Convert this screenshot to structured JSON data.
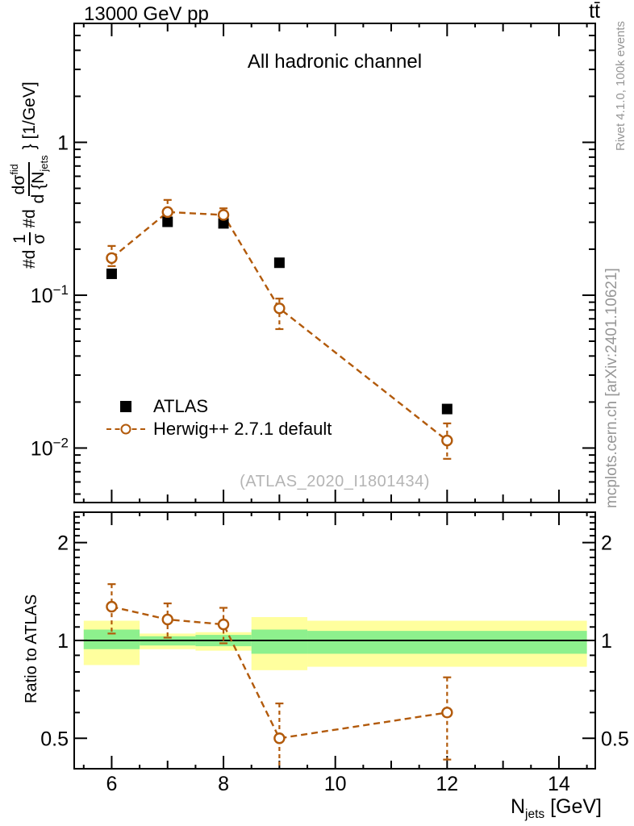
{
  "header": {
    "left_title": "13000 GeV pp",
    "right_title": "tt̄"
  },
  "side_texts": {
    "rivet": "Rivet 4.1.0,  100k events",
    "mcplots": "mcplots.cern.ch [arXiv:2401.10621]"
  },
  "main_panel": {
    "title": "All hadronic channel",
    "watermark": "(ATLAS_2020_I1801434)",
    "ylabel": {
      "hash1": "#d",
      "frac1_num": "1",
      "frac1_den": "σ",
      "hash2": "#d",
      "frac2_num": "dσ",
      "frac2_sup": "fid",
      "frac2_den": "d {N",
      "frac2_den_sub": "jets",
      "tail": "} [1/GeV]"
    }
  },
  "ratio_panel": {
    "ylabel": "Ratio to ATLAS"
  },
  "xaxis": {
    "symbol": "N",
    "subscript": "jets",
    "unit": " [GeV]"
  },
  "legend": {
    "items": [
      {
        "label": "ATLAS",
        "marker": "filled-square"
      },
      {
        "label": "Herwig++ 2.7.1 default",
        "marker": "open-circle-dashed"
      }
    ]
  },
  "colors": {
    "herwig": "#b25a0b",
    "band_yellow": "#ffff9e",
    "band_green": "#8df08d",
    "gray_text": "#969696",
    "watermark": "#b4b4b4",
    "black": "#000000"
  },
  "chart_data": {
    "type": "line",
    "title": "All hadronic channel",
    "xlabel": "N_jets [GeV]",
    "ylabel_main": "#d 1/σ #d dσ^fid / d {N_jets} [1/GeV]",
    "ylabel_ratio": "Ratio to ATLAS",
    "x": [
      6,
      7,
      8,
      9,
      12
    ],
    "series": [
      {
        "name": "ATLAS",
        "marker": "filled-square",
        "color": "#000000",
        "values": [
          0.138,
          0.302,
          0.295,
          0.163,
          0.018
        ]
      },
      {
        "name": "Herwig++ 2.7.1 default",
        "marker": "open-circle",
        "linestyle": "dashed",
        "color": "#b25a0b",
        "values": [
          0.175,
          0.35,
          0.335,
          0.082,
          0.0112
        ],
        "err_lo": [
          0.155,
          0.31,
          0.3,
          0.06,
          0.0085
        ],
        "err_hi": [
          0.21,
          0.42,
          0.37,
          0.095,
          0.0145
        ]
      }
    ],
    "ratio": {
      "name": "Herwig++/ATLAS",
      "values": [
        1.27,
        1.16,
        1.12,
        0.5,
        0.6
      ],
      "err_lo": [
        1.05,
        1.02,
        0.98,
        0.36,
        0.43
      ],
      "err_hi": [
        1.49,
        1.3,
        1.26,
        0.64,
        0.77
      ]
    },
    "bands": [
      {
        "x0": 5.5,
        "x1": 6.5,
        "yellow": [
          0.84,
          1.15
        ],
        "green": [
          0.94,
          1.08
        ]
      },
      {
        "x0": 6.5,
        "x1": 7.5,
        "yellow": [
          0.94,
          1.05
        ],
        "green": [
          0.965,
          1.03
        ]
      },
      {
        "x0": 7.5,
        "x1": 8.5,
        "yellow": [
          0.93,
          1.06
        ],
        "green": [
          0.96,
          1.04
        ]
      },
      {
        "x0": 8.5,
        "x1": 9.5,
        "yellow": [
          0.81,
          1.18
        ],
        "green": [
          0.91,
          1.08
        ]
      },
      {
        "x0": 9.5,
        "x1": 14.5,
        "yellow": [
          0.83,
          1.15
        ],
        "green": [
          0.91,
          1.07
        ]
      }
    ],
    "reference_line_y": 1,
    "axes": {
      "x": {
        "min": 5.33,
        "max": 14.65,
        "major": [
          {
            "v": 6,
            "t": "6"
          },
          {
            "v": 8,
            "t": "8"
          },
          {
            "v": 10,
            "t": "10"
          },
          {
            "v": 12,
            "t": "12"
          },
          {
            "v": 14,
            "t": "14"
          }
        ],
        "medium": [
          7,
          9,
          11,
          13
        ],
        "minor": [
          5.5,
          6.5,
          7.5,
          8.5,
          9.5,
          10.5,
          11.5,
          12.5,
          13.5,
          14.5
        ]
      },
      "y_main": {
        "scale": "log",
        "min": 0.0044,
        "max": 6.0,
        "major": [
          {
            "v": 1,
            "t": "1"
          },
          {
            "v": 0.1,
            "t": "10",
            "e": "−1"
          },
          {
            "v": 0.01,
            "t": "10",
            "e": "−2"
          }
        ]
      },
      "y_ratio": {
        "scale": "log",
        "min": 0.403,
        "max": 2.48,
        "major": [
          {
            "v": 2,
            "t": "2"
          },
          {
            "v": 1,
            "t": "1"
          },
          {
            "v": 0.5,
            "t": "0.5"
          }
        ]
      }
    },
    "legend_position": "center-left",
    "grid": false
  }
}
